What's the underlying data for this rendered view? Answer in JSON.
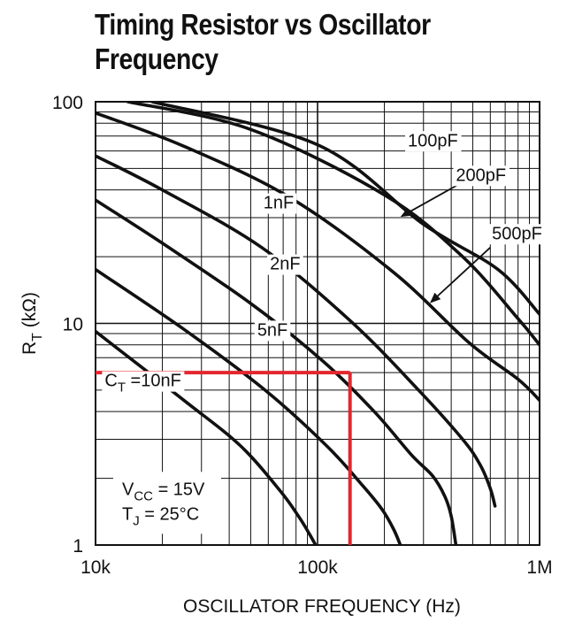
{
  "chart_data": {
    "type": "line",
    "title_line1": "Timing Resistor vs Oscillator",
    "title_line2": "Frequency",
    "xlabel": "OSCILLATOR FREQUENCY (Hz)",
    "ylabel_main": "R",
    "ylabel_sub": "T",
    "ylabel_unit": "(kΩ)",
    "x_scale": "log",
    "y_scale": "log",
    "xlim": [
      10000,
      1000000
    ],
    "ylim": [
      1,
      100
    ],
    "grid": true,
    "x_ticks": [
      {
        "value": 10000,
        "label": "10k"
      },
      {
        "value": 100000,
        "label": "100k"
      },
      {
        "value": 1000000,
        "label": "1M"
      }
    ],
    "y_ticks": [
      {
        "value": 1,
        "label": "1"
      },
      {
        "value": 10,
        "label": "10"
      },
      {
        "value": 100,
        "label": "100"
      }
    ],
    "series": [
      {
        "name": "100pF",
        "x": [
          18000,
          100000,
          300000,
          650000,
          1000000
        ],
        "y": [
          100,
          64,
          28,
          17.5,
          11
        ]
      },
      {
        "name": "200pF",
        "x": [
          14000,
          50000,
          200000,
          450000,
          800000,
          1000000
        ],
        "y": [
          100,
          75,
          38,
          20,
          10.5,
          8
        ]
      },
      {
        "name": "500pF",
        "x": [
          10000,
          25000,
          75000,
          220000,
          480000,
          800000,
          1000000
        ],
        "y": [
          89,
          63,
          37,
          17,
          8.2,
          5.6,
          4.5
        ]
      },
      {
        "name": "1nF",
        "x": [
          10000,
          20000,
          56000,
          140000,
          280000,
          450000,
          540000,
          600000,
          630000
        ],
        "y": [
          57,
          40,
          22,
          10.3,
          5.1,
          3,
          2.3,
          1.8,
          1.5
        ]
      },
      {
        "name": "2nF",
        "x": [
          10000,
          20000,
          50000,
          105000,
          180000,
          265000,
          330000,
          375000,
          400000,
          420000
        ],
        "y": [
          36,
          23,
          12.3,
          6.8,
          4,
          2.55,
          2.05,
          1.65,
          1.35,
          1
        ]
      },
      {
        "name": "5nF",
        "x": [
          10000,
          25000,
          58000,
          110000,
          160000,
          195000,
          220000,
          236000
        ],
        "y": [
          17.5,
          9.4,
          5,
          2.8,
          1.85,
          1.45,
          1.18,
          1
        ]
      },
      {
        "name": "10nF",
        "x": [
          10000,
          25000,
          45000,
          68000,
          82000,
          92000,
          98000
        ],
        "y": [
          9.2,
          4.5,
          2.8,
          1.75,
          1.35,
          1.12,
          1
        ]
      }
    ],
    "labels": [
      {
        "text": "100pF",
        "x": 255000,
        "y": 63
      },
      {
        "text": "200pF",
        "x": 420000,
        "y": 44
      },
      {
        "text": "500pF",
        "x": 610000,
        "y": 24
      },
      {
        "text": "1nF",
        "x": 57000,
        "y": 33
      },
      {
        "text": "2nF",
        "x": 61000,
        "y": 17.5
      },
      {
        "text": "5nF",
        "x": 53500,
        "y": 8.8
      },
      {
        "text": "C",
        "sub": "T",
        "rest": " =10nF",
        "x": 11000,
        "y": 5.2
      }
    ],
    "arrows": [
      {
        "from": [
          425000,
          42
        ],
        "to": [
          240000,
          30.5
        ]
      },
      {
        "from": [
          600000,
          22
        ],
        "to": [
          325000,
          12.5
        ]
      }
    ],
    "annotation": {
      "type": "hline-vline",
      "color": "#e3262e",
      "x": 140000,
      "y": 6
    },
    "conditions": [
      {
        "main": "V",
        "sub": "CC",
        "rest": " = 15V"
      },
      {
        "main": "T",
        "sub": "J",
        "rest": " = 25°C"
      }
    ]
  }
}
